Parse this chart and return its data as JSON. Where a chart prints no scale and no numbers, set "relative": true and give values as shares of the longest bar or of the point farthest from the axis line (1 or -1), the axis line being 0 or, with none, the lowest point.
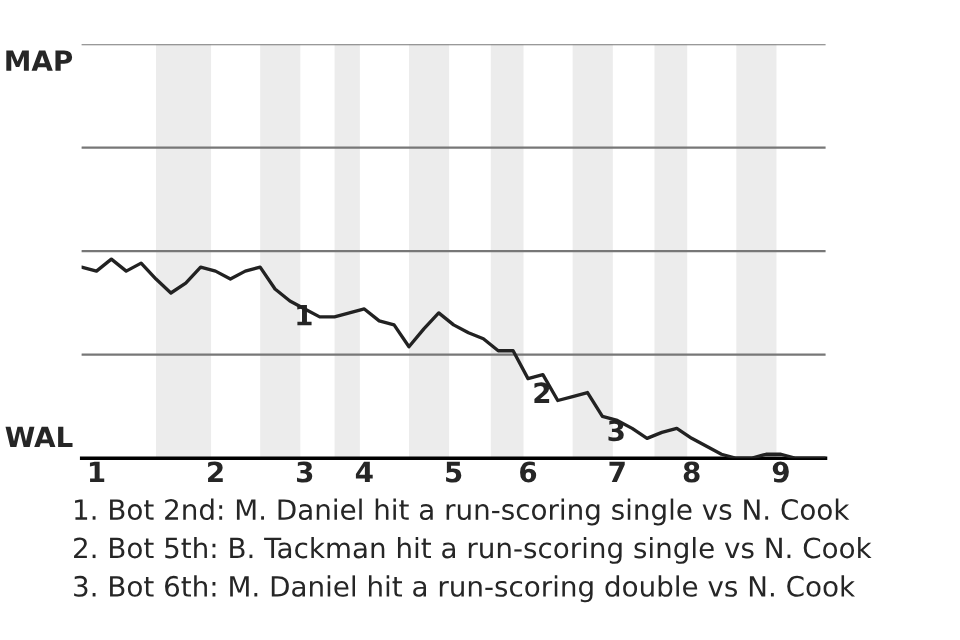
{
  "chart_data": {
    "type": "line",
    "relative": true,
    "categories": [
      null,
      "1",
      null,
      null,
      null,
      null,
      null,
      null,
      null,
      "2",
      null,
      null,
      null,
      null,
      null,
      "3",
      null,
      null,
      null,
      "4",
      null,
      null,
      null,
      null,
      null,
      "5",
      null,
      null,
      null,
      null,
      "6",
      null,
      null,
      null,
      null,
      null,
      "7",
      null,
      null,
      null,
      null,
      "8",
      null,
      null,
      null,
      null,
      null,
      "9",
      null,
      null,
      null
    ],
    "series": [
      {
        "color": "#222222",
        "values": [
          0.96,
          0.94,
          1,
          0.94,
          0.98,
          0.9,
          0.83,
          0.88,
          0.96,
          0.94,
          0.9,
          0.94,
          0.96,
          0.85,
          0.79,
          0.75,
          0.71,
          0.71,
          0.73,
          0.75,
          0.69,
          0.67,
          0.56,
          0.65,
          0.73,
          0.67,
          0.63,
          0.6,
          0.54,
          0.54,
          0.4,
          0.42,
          0.29,
          0.31,
          0.33,
          0.21,
          0.19,
          0.15,
          0.1,
          0.13,
          0.15,
          0.1,
          0.06,
          0.02,
          0,
          0,
          0.02,
          0.02,
          0,
          0,
          0
        ]
      }
    ],
    "ref_lines": [
      {
        "axis": "y",
        "value": 0.52,
        "color": "#777777"
      },
      {
        "axis": "y",
        "value": 1.04,
        "color": "#777777"
      },
      {
        "axis": "y",
        "value": 1.56,
        "color": "#777777"
      },
      {
        "axis": "y",
        "value": 2.08,
        "color": "#777777"
      }
    ],
    "annotations": [
      {
        "text": "1",
        "y": 0.79
      },
      {
        "text": "2",
        "y": 0.4
      },
      {
        "text": "3",
        "y": 0.21
      },
      "MAP",
      "WAL",
      "1. Bot 2nd: M. Daniel hit a run-scoring single vs N. Cook",
      "2. Bot 5th: B. Tackman hit a run-scoring single vs N. Cook",
      "3. Bot 6th: M. Daniel hit a run-scoring double vs N. Cook"
    ]
  }
}
